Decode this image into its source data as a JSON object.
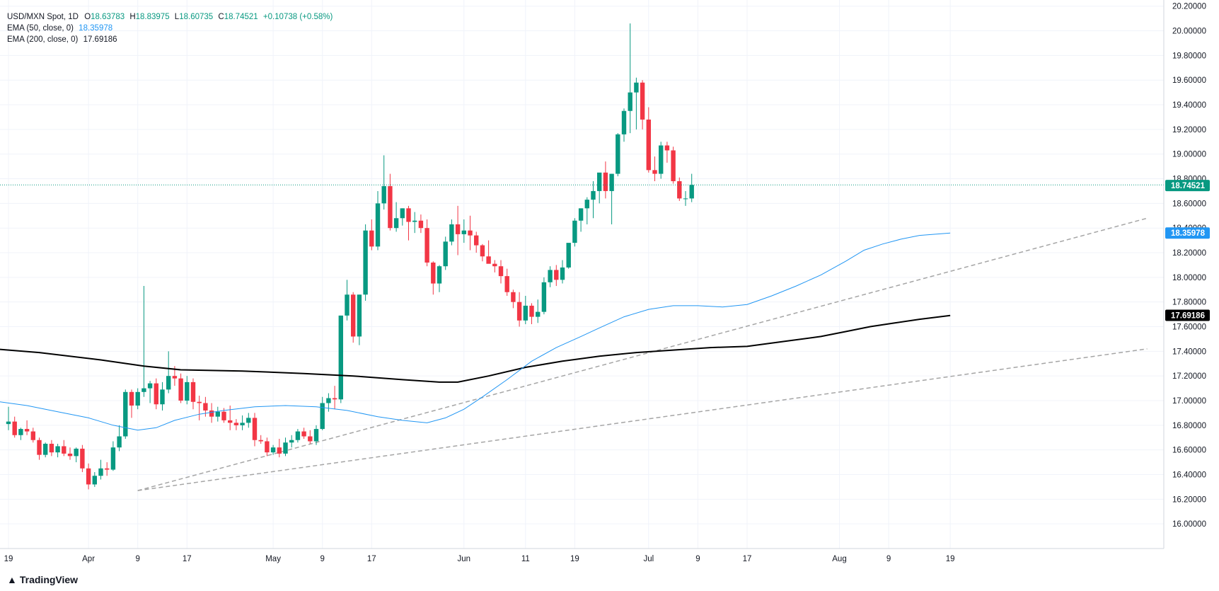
{
  "legend": {
    "symbol": "USD/MXN Spot, 1D",
    "open_label": "O",
    "open": "18.63783",
    "high_label": "H",
    "high": "18.83975",
    "low_label": "L",
    "low": "18.60735",
    "close_label": "C",
    "close": "18.74521",
    "change": "+0.10738 (+0.58%)",
    "ema50_label": "EMA (50, close, 0)",
    "ema50_value": "18.35978",
    "ema200_label": "EMA (200, close, 0)",
    "ema200_value": "17.69186"
  },
  "brand": "TradingView",
  "colors": {
    "up": "#089981",
    "down": "#f23645",
    "ema50": "#2196f3",
    "ema200": "#000000",
    "trend": "#a5a5a5",
    "grid": "#f0f3fa"
  },
  "chart_data": {
    "type": "candlestick",
    "ylim": [
      15.8,
      20.25
    ],
    "y_ticks": [
      "16.00000",
      "16.20000",
      "16.40000",
      "16.60000",
      "16.80000",
      "17.00000",
      "17.20000",
      "17.40000",
      "17.60000",
      "17.80000",
      "18.00000",
      "18.20000",
      "18.40000",
      "18.60000",
      "18.80000",
      "19.00000",
      "19.20000",
      "19.40000",
      "19.60000",
      "19.80000",
      "20.00000",
      "20.20000"
    ],
    "x_ticks": [
      {
        "label": "19",
        "day": 0
      },
      {
        "label": "Apr",
        "day": 13
      },
      {
        "label": "9",
        "day": 21
      },
      {
        "label": "17",
        "day": 29
      },
      {
        "label": "May",
        "day": 43
      },
      {
        "label": "9",
        "day": 51
      },
      {
        "label": "17",
        "day": 59
      },
      {
        "label": "Jun",
        "day": 74
      },
      {
        "label": "11",
        "day": 84
      },
      {
        "label": "19",
        "day": 92
      },
      {
        "label": "Jul",
        "day": 104
      },
      {
        "label": "9",
        "day": 112
      },
      {
        "label": "17",
        "day": 120
      },
      {
        "label": "Aug",
        "day": 135
      },
      {
        "label": "9",
        "day": 143
      },
      {
        "label": "19",
        "day": 153
      }
    ],
    "candles": [
      [
        16.81,
        16.95,
        16.76,
        16.83
      ],
      [
        16.83,
        16.87,
        16.7,
        16.72
      ],
      [
        16.72,
        16.78,
        16.68,
        16.77
      ],
      [
        16.77,
        16.84,
        16.72,
        16.75
      ],
      [
        16.75,
        16.78,
        16.66,
        16.68
      ],
      [
        16.68,
        16.7,
        16.52,
        16.56
      ],
      [
        16.56,
        16.66,
        16.54,
        16.65
      ],
      [
        16.65,
        16.68,
        16.55,
        16.58
      ],
      [
        16.58,
        16.65,
        16.54,
        16.63
      ],
      [
        16.63,
        16.68,
        16.55,
        16.57
      ],
      [
        16.57,
        16.62,
        16.52,
        16.55
      ],
      [
        16.55,
        16.62,
        16.5,
        16.61
      ],
      [
        16.61,
        16.64,
        16.42,
        16.45
      ],
      [
        16.45,
        16.49,
        16.28,
        16.32
      ],
      [
        16.32,
        16.42,
        16.3,
        16.39
      ],
      [
        16.39,
        16.52,
        16.36,
        16.45
      ],
      [
        16.45,
        16.5,
        16.39,
        16.44
      ],
      [
        16.44,
        16.67,
        16.43,
        16.62
      ],
      [
        16.62,
        16.8,
        16.59,
        16.71
      ],
      [
        16.71,
        17.09,
        16.69,
        17.07
      ],
      [
        17.07,
        17.09,
        16.86,
        16.96
      ],
      [
        16.96,
        17.1,
        16.93,
        17.07
      ],
      [
        17.07,
        17.93,
        17.03,
        17.1
      ],
      [
        17.1,
        17.16,
        16.98,
        17.14
      ],
      [
        17.14,
        17.18,
        16.93,
        16.97
      ],
      [
        16.97,
        17.15,
        16.92,
        17.09
      ],
      [
        17.09,
        17.4,
        17.06,
        17.2
      ],
      [
        17.2,
        17.28,
        17.12,
        17.18
      ],
      [
        17.18,
        17.22,
        16.98,
        17.0
      ],
      [
        17.0,
        17.2,
        16.97,
        17.15
      ],
      [
        17.15,
        17.18,
        16.93,
        16.99
      ],
      [
        16.99,
        17.04,
        16.84,
        16.98
      ],
      [
        16.98,
        17.03,
        16.87,
        16.92
      ],
      [
        16.92,
        16.98,
        16.82,
        16.87
      ],
      [
        16.87,
        16.95,
        16.83,
        16.91
      ],
      [
        16.91,
        16.94,
        16.82,
        16.84
      ],
      [
        16.84,
        16.96,
        16.76,
        16.82
      ],
      [
        16.82,
        16.85,
        16.76,
        16.8
      ],
      [
        16.8,
        16.88,
        16.76,
        16.82
      ],
      [
        16.82,
        16.9,
        16.78,
        16.86
      ],
      [
        16.86,
        16.9,
        16.63,
        16.68
      ],
      [
        16.68,
        16.72,
        16.65,
        16.67
      ],
      [
        16.67,
        16.7,
        16.55,
        16.58
      ],
      [
        16.58,
        16.64,
        16.56,
        16.62
      ],
      [
        16.62,
        16.69,
        16.54,
        16.57
      ],
      [
        16.57,
        16.7,
        16.55,
        16.66
      ],
      [
        16.66,
        16.72,
        16.62,
        16.68
      ],
      [
        16.68,
        16.77,
        16.66,
        16.75
      ],
      [
        16.75,
        16.78,
        16.69,
        16.71
      ],
      [
        16.71,
        16.76,
        16.65,
        16.67
      ],
      [
        16.67,
        16.8,
        16.64,
        16.77
      ],
      [
        16.77,
        17.03,
        16.76,
        16.98
      ],
      [
        16.98,
        17.06,
        16.91,
        17.02
      ],
      [
        17.02,
        17.12,
        16.93,
        17.01
      ],
      [
        17.01,
        17.69,
        16.98,
        17.69
      ],
      [
        17.69,
        17.98,
        17.65,
        17.86
      ],
      [
        17.86,
        17.88,
        17.47,
        17.52
      ],
      [
        17.52,
        17.86,
        17.45,
        17.86
      ],
      [
        17.86,
        18.43,
        17.81,
        18.38
      ],
      [
        18.38,
        18.47,
        18.22,
        18.25
      ],
      [
        18.25,
        18.7,
        18.22,
        18.6
      ],
      [
        18.6,
        18.99,
        18.55,
        18.74
      ],
      [
        18.74,
        18.84,
        18.38,
        18.4
      ],
      [
        18.4,
        18.61,
        18.37,
        18.48
      ],
      [
        18.48,
        18.56,
        18.42,
        18.56
      ],
      [
        18.56,
        18.58,
        18.3,
        18.45
      ],
      [
        18.45,
        18.53,
        18.36,
        18.46
      ],
      [
        18.46,
        18.51,
        18.36,
        18.4
      ],
      [
        18.4,
        18.47,
        18.09,
        18.12
      ],
      [
        18.12,
        18.13,
        17.86,
        17.95
      ],
      [
        17.95,
        18.1,
        17.88,
        18.09
      ],
      [
        18.09,
        18.33,
        18.06,
        18.29
      ],
      [
        18.29,
        18.47,
        18.26,
        18.43
      ],
      [
        18.43,
        18.58,
        18.18,
        18.35
      ],
      [
        18.35,
        18.47,
        18.28,
        18.38
      ],
      [
        18.38,
        18.5,
        18.22,
        18.34
      ],
      [
        18.34,
        18.37,
        18.2,
        18.26
      ],
      [
        18.26,
        18.27,
        18.13,
        18.17
      ],
      [
        18.17,
        18.3,
        18.14,
        18.11
      ],
      [
        18.11,
        18.14,
        18.04,
        18.09
      ],
      [
        18.09,
        18.14,
        17.95,
        18.01
      ],
      [
        18.01,
        18.07,
        17.85,
        17.88
      ],
      [
        17.88,
        17.9,
        17.75,
        17.8
      ],
      [
        17.8,
        17.88,
        17.6,
        17.65
      ],
      [
        17.65,
        17.85,
        17.62,
        17.77
      ],
      [
        17.77,
        17.79,
        17.62,
        17.68
      ],
      [
        17.68,
        17.82,
        17.63,
        17.72
      ],
      [
        17.72,
        18.0,
        17.7,
        17.96
      ],
      [
        17.96,
        18.09,
        17.92,
        18.06
      ],
      [
        18.06,
        18.1,
        17.93,
        17.98
      ],
      [
        17.98,
        18.14,
        17.95,
        18.08
      ],
      [
        18.08,
        18.27,
        18.07,
        18.28
      ],
      [
        18.28,
        18.48,
        18.25,
        18.46
      ],
      [
        18.46,
        18.56,
        18.37,
        18.56
      ],
      [
        18.56,
        18.65,
        18.43,
        18.63
      ],
      [
        18.63,
        18.78,
        18.48,
        18.7
      ],
      [
        18.7,
        18.83,
        18.6,
        18.85
      ],
      [
        18.85,
        18.94,
        18.64,
        18.7
      ],
      [
        18.7,
        18.84,
        18.43,
        18.84
      ],
      [
        18.84,
        19.17,
        18.82,
        19.16
      ],
      [
        19.16,
        19.37,
        19.1,
        19.35
      ],
      [
        19.35,
        20.06,
        19.17,
        19.5
      ],
      [
        19.5,
        19.62,
        19.2,
        19.58
      ],
      [
        19.58,
        19.6,
        19.2,
        19.28
      ],
      [
        19.28,
        19.38,
        18.85,
        18.87
      ],
      [
        18.87,
        18.98,
        18.78,
        18.84
      ],
      [
        18.84,
        19.1,
        18.8,
        19.07
      ],
      [
        19.07,
        19.1,
        18.93,
        19.03
      ],
      [
        19.03,
        19.06,
        18.76,
        18.78
      ],
      [
        18.78,
        18.81,
        18.62,
        18.64
      ],
      [
        18.64,
        18.7,
        18.58,
        18.64
      ],
      [
        18.64,
        18.84,
        18.61,
        18.75
      ]
    ],
    "ema50": [
      [
        -10,
        17.05
      ],
      [
        3,
        16.96
      ],
      [
        8,
        16.91
      ],
      [
        13,
        16.86
      ],
      [
        17,
        16.8
      ],
      [
        21,
        16.76
      ],
      [
        24,
        16.78
      ],
      [
        27,
        16.84
      ],
      [
        31,
        16.89
      ],
      [
        35,
        16.92
      ],
      [
        40,
        16.95
      ],
      [
        45,
        16.96
      ],
      [
        50,
        16.95
      ],
      [
        55,
        16.92
      ],
      [
        60,
        16.87
      ],
      [
        64,
        16.84
      ],
      [
        68,
        16.82
      ],
      [
        71,
        16.86
      ],
      [
        74,
        16.93
      ],
      [
        77,
        17.03
      ],
      [
        81,
        17.17
      ],
      [
        85,
        17.32
      ],
      [
        89,
        17.43
      ],
      [
        93,
        17.52
      ],
      [
        96,
        17.59
      ],
      [
        100,
        17.68
      ],
      [
        104,
        17.74
      ],
      [
        108,
        17.77
      ],
      [
        112,
        17.77
      ],
      [
        116,
        17.76
      ],
      [
        120,
        17.78
      ],
      [
        124,
        17.85
      ],
      [
        128,
        17.93
      ],
      [
        132,
        18.02
      ],
      [
        136,
        18.13
      ],
      [
        139,
        18.22
      ],
      [
        142,
        18.27
      ],
      [
        145,
        18.31
      ],
      [
        148,
        18.34
      ],
      [
        153,
        18.36
      ]
    ],
    "ema200": [
      [
        -10,
        17.45
      ],
      [
        5,
        17.39
      ],
      [
        15,
        17.33
      ],
      [
        22,
        17.28
      ],
      [
        28,
        17.25
      ],
      [
        38,
        17.24
      ],
      [
        48,
        17.22
      ],
      [
        56,
        17.2
      ],
      [
        64,
        17.17
      ],
      [
        70,
        17.15
      ],
      [
        73,
        17.15
      ],
      [
        78,
        17.2
      ],
      [
        84,
        17.27
      ],
      [
        90,
        17.32
      ],
      [
        96,
        17.36
      ],
      [
        102,
        17.39
      ],
      [
        108,
        17.41
      ],
      [
        114,
        17.43
      ],
      [
        120,
        17.44
      ],
      [
        126,
        17.48
      ],
      [
        132,
        17.52
      ],
      [
        136,
        17.56
      ],
      [
        140,
        17.6
      ],
      [
        144,
        17.63
      ],
      [
        148,
        17.66
      ],
      [
        153,
        17.69
      ]
    ],
    "trendlines": [
      [
        [
          21,
          16.27
        ],
        [
          185,
          18.48
        ]
      ],
      [
        [
          21,
          16.27
        ],
        [
          185,
          17.42
        ]
      ]
    ],
    "last_price_tag": "18.74521",
    "ema50_tag": "18.35978",
    "ema200_tag": "17.69186",
    "hidden_tick_label": "18.40000"
  }
}
